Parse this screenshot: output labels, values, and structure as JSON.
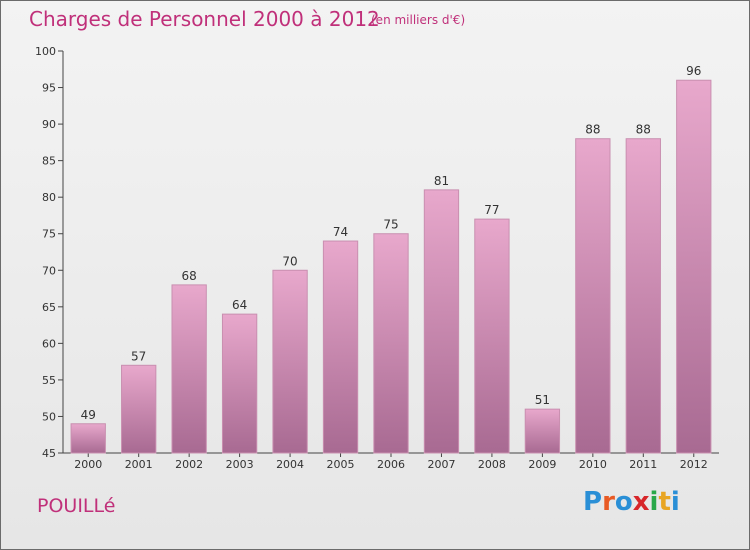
{
  "header": {
    "title": "Charges de Personnel 2000 à 2012",
    "subtitle": "(en milliers d'€)"
  },
  "footer": {
    "place": "POUILLé",
    "logo": [
      "P",
      "r",
      "o",
      "x",
      "i",
      "t",
      "i"
    ]
  },
  "colors": {
    "accent": "#c0307a",
    "bar_top": "#e8a8cc",
    "bar_bottom": "#a86a92",
    "logo": [
      "#2a8fd6",
      "#e85a24",
      "#2a8fd6",
      "#d7262a",
      "#29a84a",
      "#e8a523",
      "#2a8fd6"
    ]
  },
  "chart_data": {
    "type": "bar",
    "categories": [
      "2000",
      "2001",
      "2002",
      "2003",
      "2004",
      "2005",
      "2006",
      "2007",
      "2008",
      "2009",
      "2010",
      "2011",
      "2012"
    ],
    "values": [
      49,
      57,
      68,
      64,
      70,
      74,
      75,
      81,
      77,
      51,
      88,
      88,
      96
    ],
    "ylim": [
      45,
      100
    ],
    "yticks": [
      45,
      50,
      55,
      60,
      65,
      70,
      75,
      80,
      85,
      90,
      95,
      100
    ],
    "grid": false,
    "legend": "none"
  }
}
